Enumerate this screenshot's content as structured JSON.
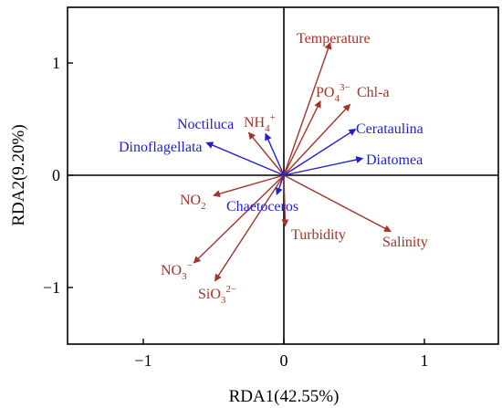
{
  "chart_data": {
    "type": "scatter",
    "subtype": "rda-biplot",
    "title": "",
    "xlabel": "RDA1(42.55%)",
    "ylabel": "RDA2(9.20%)",
    "xlim": [
      -1.5,
      1.5
    ],
    "ylim": [
      -1.5,
      1.5
    ],
    "xticks": [
      {
        "value": -1,
        "label": "−1"
      },
      {
        "value": 0,
        "label": "0"
      },
      {
        "value": 1,
        "label": "1"
      }
    ],
    "yticks": [
      {
        "value": -1,
        "label": "−1"
      },
      {
        "value": 0,
        "label": "0"
      },
      {
        "value": 1,
        "label": "1"
      }
    ],
    "grid": false,
    "zero_lines": true,
    "colors": {
      "environment": "#a0342a",
      "species": "#1f1fd0",
      "axis": "#000000"
    },
    "series": [
      {
        "group": "environment",
        "vectors": [
          {
            "id": "temperature",
            "label": "Temperature",
            "x": 0.33,
            "y": 1.18
          },
          {
            "id": "po4",
            "base": "PO",
            "sub": "4",
            "sup": "3−",
            "x": 0.26,
            "y": 0.66
          },
          {
            "id": "chla",
            "label": "Chl-a",
            "x": 0.47,
            "y": 0.63
          },
          {
            "id": "nh4",
            "base": "NH",
            "sub": "4",
            "sup": "+",
            "x": -0.25,
            "y": 0.38
          },
          {
            "id": "no2",
            "base": "NO",
            "sub": "2",
            "sup": "",
            "x": -0.5,
            "y": -0.18
          },
          {
            "id": "no3",
            "base": "NO",
            "sub": "3",
            "sup": "−",
            "x": -0.64,
            "y": -0.78
          },
          {
            "id": "sio3",
            "base": "SiO",
            "sub": "3",
            "sup": "2−",
            "x": -0.49,
            "y": -0.94
          },
          {
            "id": "turbidity",
            "label": "Turbidity",
            "x": 0.01,
            "y": -0.45
          },
          {
            "id": "salinity",
            "label": "Salinity",
            "x": 0.76,
            "y": -0.5
          }
        ]
      },
      {
        "group": "species",
        "vectors": [
          {
            "id": "noctiluca",
            "label": "Noctiluca",
            "x": -0.13,
            "y": 0.37
          },
          {
            "id": "dinoflagellata",
            "label": "Dinoflagellata",
            "x": -0.55,
            "y": 0.29
          },
          {
            "id": "cerataulina",
            "label": "Cerataulina",
            "x": 0.51,
            "y": 0.41
          },
          {
            "id": "diatomea",
            "label": "Diatomea",
            "x": 0.56,
            "y": 0.15
          },
          {
            "id": "chaetoceros",
            "label": "Chaetoceros",
            "x": -0.05,
            "y": -0.17
          }
        ]
      }
    ]
  }
}
